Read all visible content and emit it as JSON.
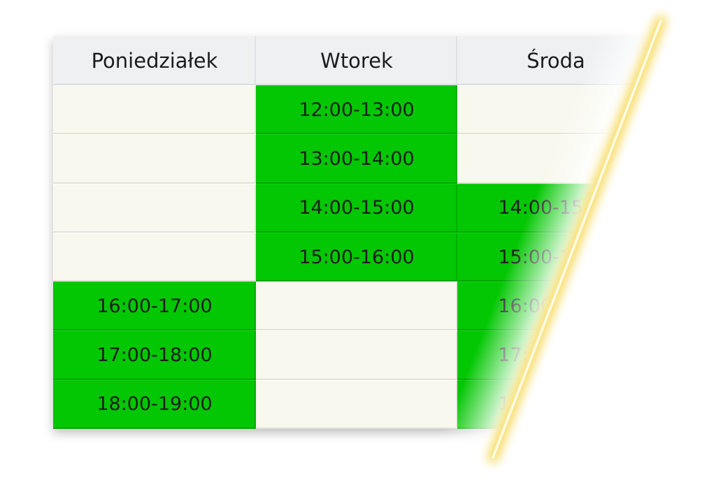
{
  "schedule": {
    "columns": [
      {
        "day": "Poniedziałek",
        "slots": [
          null,
          null,
          null,
          null,
          "16:00-17:00",
          "17:00-18:00",
          "18:00-19:00"
        ]
      },
      {
        "day": "Wtorek",
        "slots": [
          "12:00-13:00",
          "13:00-14:00",
          "14:00-15:00",
          "15:00-16:00",
          null,
          null,
          null
        ]
      },
      {
        "day": "Środa",
        "slots": [
          null,
          null,
          "14:00-15:00",
          "15:00-16:00",
          "16:00-17:00",
          "17:00-18:00",
          "18:00-19:00"
        ]
      }
    ]
  },
  "colors": {
    "busy": "#02c702",
    "free": "#f8f8ee",
    "header": "#eef0f2",
    "glow": "#f5d442"
  }
}
